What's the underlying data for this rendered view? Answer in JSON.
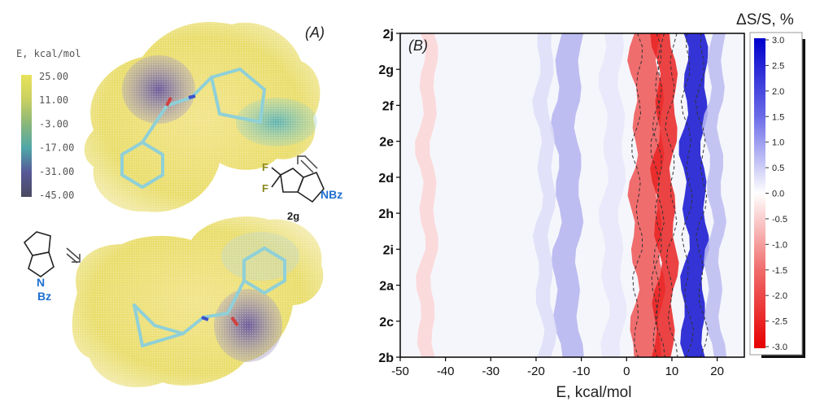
{
  "panel_a": {
    "label": "(A)",
    "colorbar": {
      "title": "E, kcal/mol",
      "ticks": [
        "25.00",
        "11.00",
        "-3.00",
        "-17.00",
        "-31.00",
        "-45.00"
      ],
      "colors": [
        "#e8e25a",
        "#9fbd62",
        "#56b7a8",
        "#4c8fa4",
        "#575897",
        "#4a4a60"
      ]
    },
    "structure_top": {
      "label": "2g",
      "substituent_text": "NBz",
      "fluorine_1": "F",
      "fluorine_2": "F"
    },
    "structure_bottom": {
      "label_n": "N",
      "label_bz": "Bz"
    },
    "colors": {
      "label_blue": "#1f6fd1",
      "fluorine_olive": "#8a8a1e",
      "stick": "#8fd0d8"
    }
  },
  "chart_data": {
    "type": "heatmap",
    "panel_label": "(B)",
    "xlabel": "E, kcal/mol",
    "ylabel": "",
    "colorbar_title": "ΔS/S, %",
    "x_ticks": [
      -50,
      -40,
      -30,
      -20,
      -10,
      0,
      10,
      20
    ],
    "xlim": [
      -50,
      26
    ],
    "y_categories": [
      "2b",
      "2c",
      "2a",
      "2i",
      "2h",
      "2d",
      "2e",
      "2f",
      "2g",
      "2j"
    ],
    "colorbar_ticks": [
      "3.0",
      "2.5",
      "2.0",
      "1.5",
      "1.0",
      "0.5",
      "0.0",
      "-0.5",
      "-1.0",
      "-1.5",
      "-2.0",
      "-2.5",
      "-3.0"
    ],
    "clim": [
      -3.0,
      3.0
    ],
    "colormap": {
      "negative": "#e60000",
      "zero": "#ffffff",
      "positive": "#0000cc"
    },
    "bands": [
      {
        "x_center": -44,
        "width": 3,
        "value": -0.5
      },
      {
        "x_center": -13,
        "width": 5,
        "value": 0.9
      },
      {
        "x_center": -18,
        "width": 3,
        "value": 0.4
      },
      {
        "x_center": -3,
        "width": 4,
        "value": 0.3
      },
      {
        "x_center": 4.5,
        "width": 6,
        "value": -2.0
      },
      {
        "x_center": 8.5,
        "width": 4,
        "value": -2.6
      },
      {
        "x_center": 15,
        "width": 4.5,
        "value": 2.8
      },
      {
        "x_center": 19.5,
        "width": 3,
        "value": 0.8
      }
    ]
  }
}
